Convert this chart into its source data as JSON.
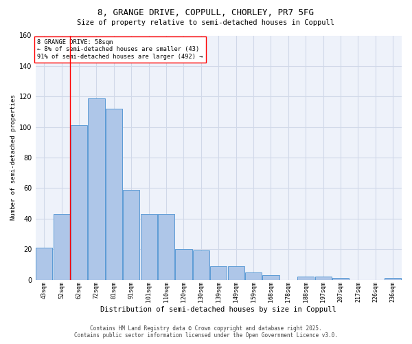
{
  "title_line1": "8, GRANGE DRIVE, COPPULL, CHORLEY, PR7 5FG",
  "title_line2": "Size of property relative to semi-detached houses in Coppull",
  "categories": [
    "43sqm",
    "52sqm",
    "62sqm",
    "72sqm",
    "81sqm",
    "91sqm",
    "101sqm",
    "110sqm",
    "120sqm",
    "130sqm",
    "139sqm",
    "149sqm",
    "159sqm",
    "168sqm",
    "178sqm",
    "188sqm",
    "197sqm",
    "207sqm",
    "217sqm",
    "226sqm",
    "236sqm"
  ],
  "values": [
    21,
    43,
    101,
    119,
    112,
    59,
    43,
    43,
    20,
    19,
    9,
    9,
    5,
    3,
    0,
    2,
    2,
    1,
    0,
    0,
    1
  ],
  "bar_color": "#aec6e8",
  "bar_edge_color": "#5b9bd5",
  "grid_color": "#d0d8e8",
  "background_color": "#eef2fa",
  "ylabel": "Number of semi-detached properties",
  "xlabel": "Distribution of semi-detached houses by size in Coppull",
  "ylim": [
    0,
    160
  ],
  "yticks": [
    0,
    20,
    40,
    60,
    80,
    100,
    120,
    140,
    160
  ],
  "annotation_title": "8 GRANGE DRIVE: 58sqm",
  "annotation_line1": "← 8% of semi-detached houses are smaller (43)",
  "annotation_line2": "91% of semi-detached houses are larger (492) →",
  "red_line_x": 1.5,
  "footer_line1": "Contains HM Land Registry data © Crown copyright and database right 2025.",
  "footer_line2": "Contains public sector information licensed under the Open Government Licence v3.0."
}
